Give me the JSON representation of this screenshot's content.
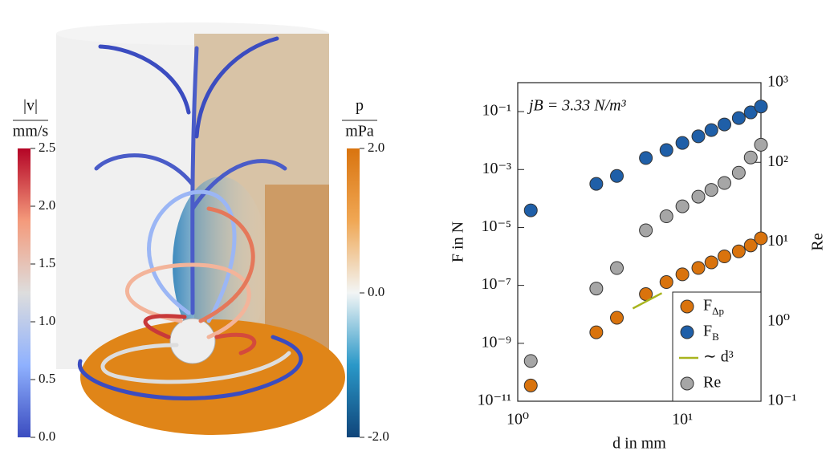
{
  "render": {
    "colorbars": [
      {
        "label": "|v|",
        "unit": "mm/s",
        "colors": [
          "#3b4cc0",
          "#8fb1fe",
          "#dddddd",
          "#f49a7b",
          "#b40426"
        ],
        "lim": [
          0,
          2.5
        ],
        "ticks": [
          {
            "value": 0,
            "label": "0.0"
          },
          0.5,
          {
            "value": 1,
            "label": "1.0"
          },
          1.5,
          {
            "value": 2,
            "label": "2.0"
          },
          2.5
        ]
      },
      {
        "label": "p",
        "unit": "mPa",
        "colors": [
          "#10457a",
          "#2a98c8",
          "#f2f5f5",
          "#f0a754",
          "#d9740f"
        ],
        "lim": [
          -2,
          2
        ],
        "ticks": [
          {
            "value": -2,
            "label": "-2.0"
          },
          {
            "value": 0,
            "label": "0.0"
          },
          {
            "value": 2,
            "label": "2.0"
          }
        ]
      }
    ]
  },
  "chart_data": {
    "type": "scatter",
    "annotation": "jB = 3.33 N/m³",
    "x_label": "d in mm",
    "y_label": "F in N",
    "y2_label": "Re",
    "log_x": true,
    "log_y": true,
    "log_y2": true,
    "legend": "lower right",
    "x": [
      1.2,
      3,
      4,
      6,
      8,
      10,
      12.5,
      15,
      18,
      22,
      26,
      30
    ],
    "xlim": [
      1,
      30
    ],
    "xticks": [
      {
        "value": 1,
        "label": "10⁰"
      },
      {
        "value": 10,
        "label": "10¹"
      }
    ],
    "ylim": [
      1e-11,
      1
    ],
    "yticks": [
      {
        "value": 1e-11,
        "label": "10⁻¹¹"
      },
      {
        "value": 1e-09,
        "label": "10⁻⁹"
      },
      {
        "value": 1e-07,
        "label": "10⁻⁷"
      },
      {
        "value": 1e-05,
        "label": "10⁻⁵"
      },
      {
        "value": 0.001,
        "label": "10⁻³"
      },
      {
        "value": 0.1,
        "label": "10⁻¹"
      }
    ],
    "y2lim": [
      0.1,
      1000
    ],
    "y2ticks": [
      {
        "value": 0.1,
        "label": "10⁻¹"
      },
      {
        "value": 1,
        "label": "10⁰"
      },
      {
        "value": 10,
        "label": "10¹"
      },
      {
        "value": 100,
        "label": "10²"
      },
      {
        "value": 1000,
        "label": "10³"
      }
    ],
    "series": [
      {
        "name": "F",
        "sub": "Δp",
        "color": "#d9730d",
        "values": [
          3.5e-11,
          2.4e-09,
          7.6e-09,
          5e-08,
          1.3e-07,
          2.4e-07,
          4e-07,
          6.2e-07,
          1e-06,
          1.5e-06,
          2.4e-06,
          4.2e-06
        ]
      },
      {
        "name": "F",
        "sub": "B",
        "color": "#1f5fa8",
        "values": [
          3.9e-05,
          0.00032,
          0.0006,
          0.0025,
          0.0047,
          0.0083,
          0.014,
          0.023,
          0.036,
          0.06,
          0.094,
          0.15
        ]
      },
      {
        "name": "∼ d³",
        "type": "line",
        "color": "#a8b41e",
        "x": [
          5,
          7.5
        ],
        "values": [
          1.6e-08,
          5.4e-08
        ]
      },
      {
        "name": "Re",
        "color": "#a6a6a6",
        "axis": "y2",
        "values": [
          0.32,
          2.6,
          4.7,
          14,
          21,
          28,
          37,
          45,
          55,
          74,
          115,
          166
        ]
      }
    ]
  }
}
